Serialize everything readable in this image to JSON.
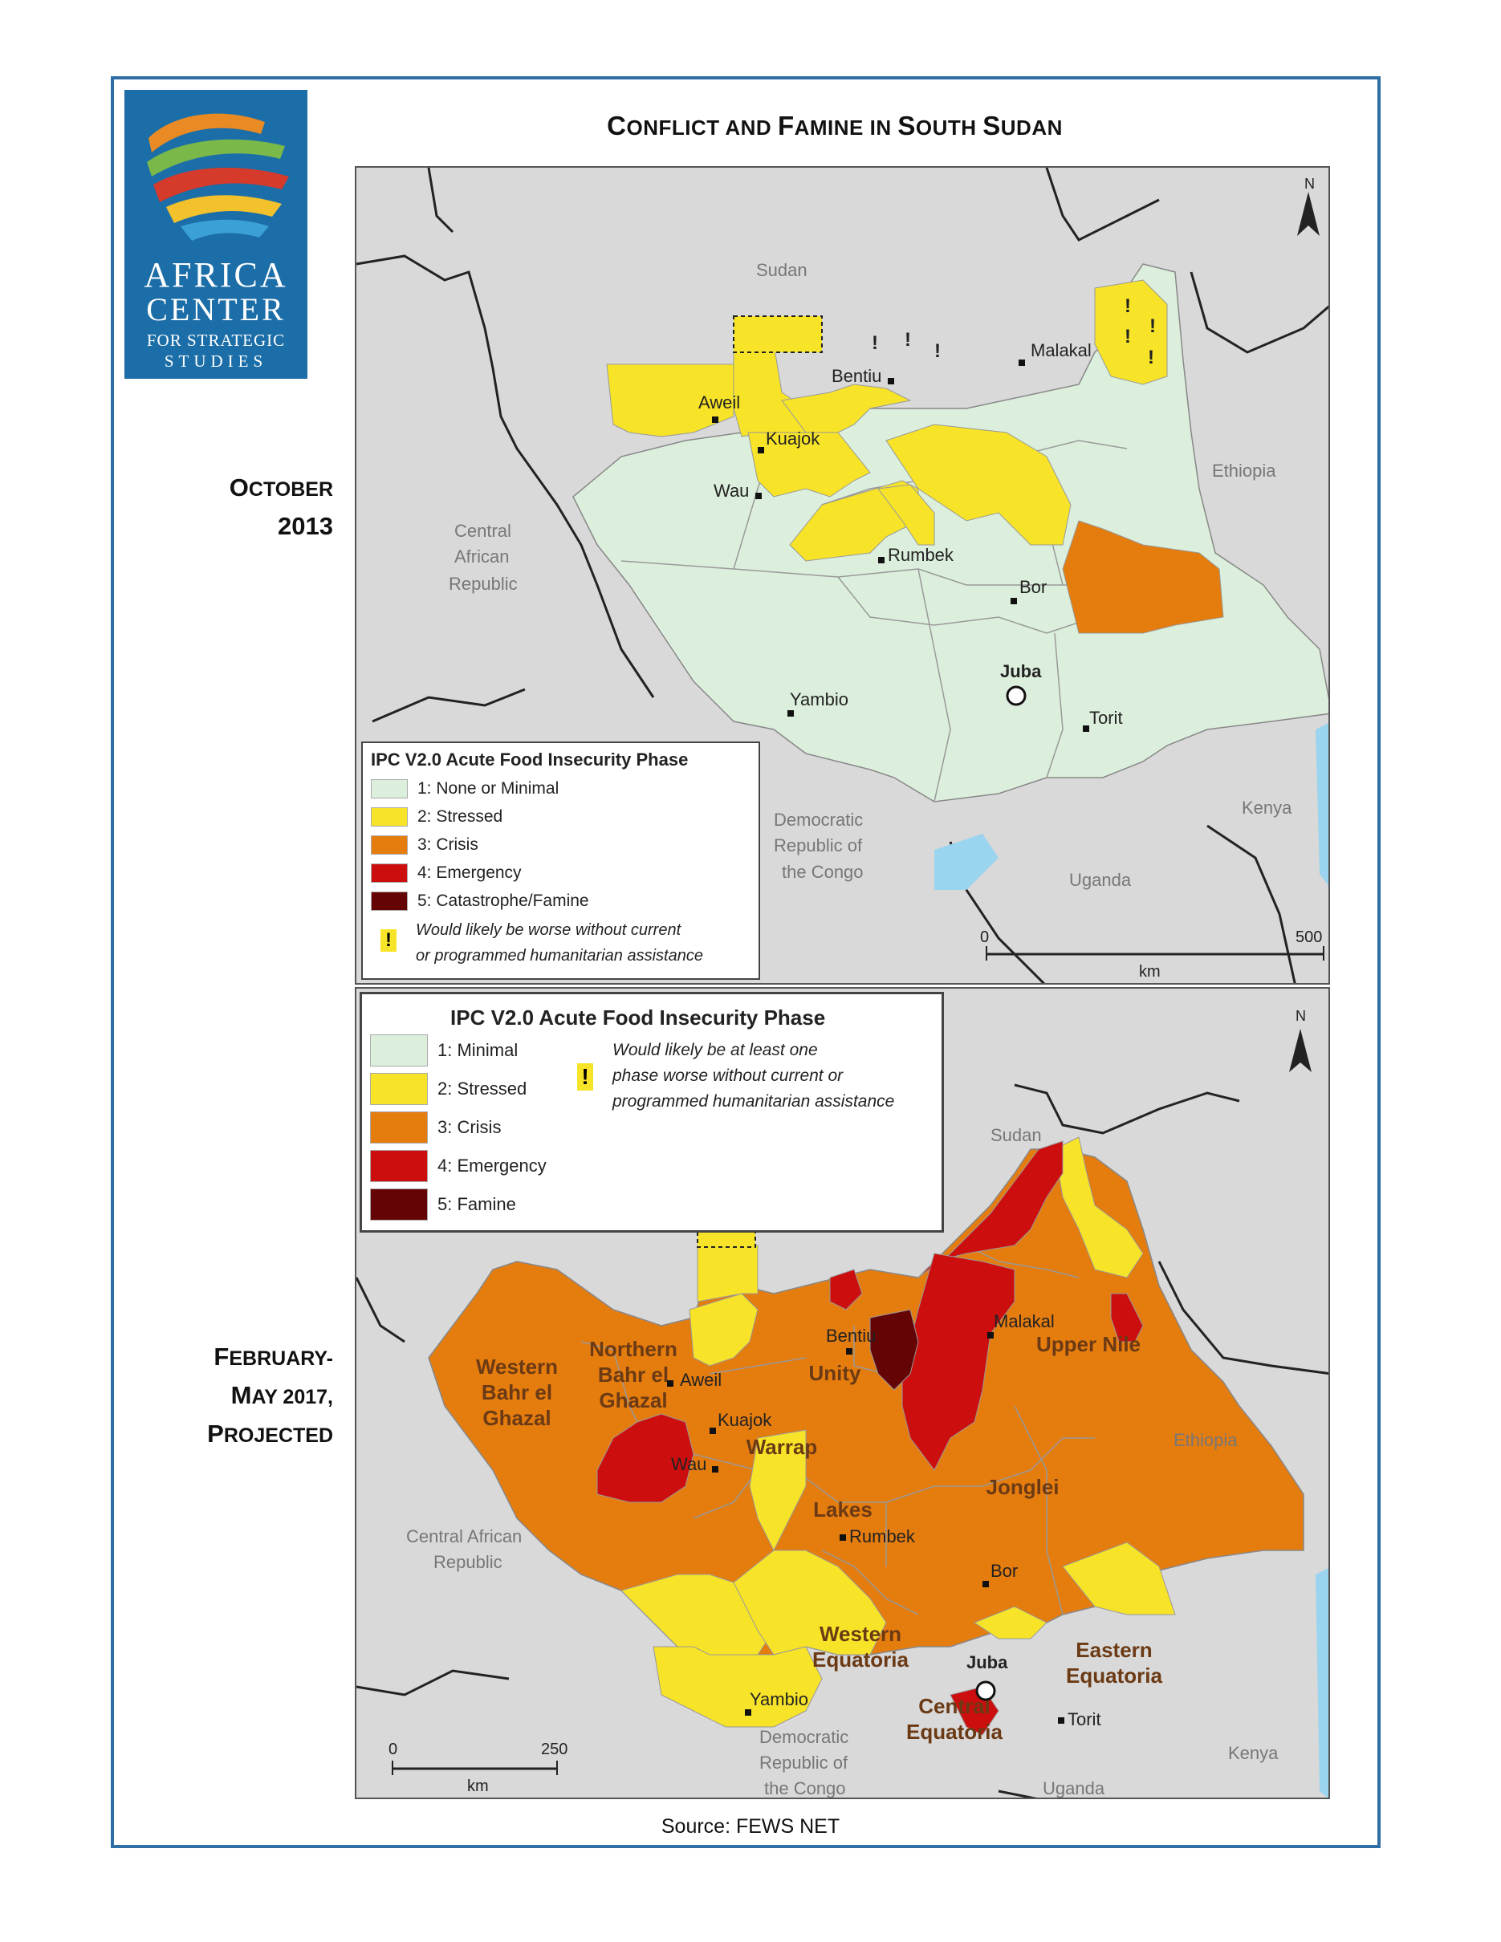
{
  "title_parts": [
    "C",
    "ONFLICT AND ",
    "F",
    "AMINE IN ",
    "S",
    "OUTH ",
    "S",
    "UDAN"
  ],
  "logo": {
    "line1": "AFRICA",
    "line2": "CENTER",
    "line3": "FOR STRATEGIC",
    "line4": "STUDIES"
  },
  "side_labels": {
    "top": {
      "line1_cap": "O",
      "line1_rest": "CTOBER",
      "line2": "2013"
    },
    "bottom": {
      "line1_cap": "F",
      "line1_rest": "EBRUARY-",
      "line2_cap": "M",
      "line2_rest": "AY 2017,",
      "line3_cap": "P",
      "line3_rest": "ROJECTED"
    }
  },
  "map1": {
    "countries": [
      "Sudan",
      "Ethiopia",
      "Central",
      "African",
      "Republic",
      "Democratic",
      "Republic of",
      "the Congo",
      "Uganda",
      "Kenya"
    ],
    "cities": [
      "Malakal",
      "Bentiu",
      "Aweil",
      "Kuajok",
      "Wau",
      "Rumbek",
      "Bor",
      "Juba",
      "Yambio",
      "Torit"
    ],
    "legend_title": "IPC V2.0 Acute Food Insecurity Phase",
    "legend_items": [
      {
        "label": "1: None or Minimal",
        "color": "#dcefdc"
      },
      {
        "label": "2: Stressed",
        "color": "#f7e428"
      },
      {
        "label": "3: Crisis",
        "color": "#e57c0e"
      },
      {
        "label": "4: Emergency",
        "color": "#cc0e0e"
      },
      {
        "label": "5: Catastrophe/Famine",
        "color": "#650404"
      }
    ],
    "assist_note_1": "Would likely be worse without current",
    "assist_note_2": "or programmed humanitarian assistance",
    "scale": {
      "start": "0",
      "end": "500",
      "unit": "km"
    },
    "north": "N"
  },
  "map2": {
    "countries": [
      "Sudan",
      "Ethiopia",
      "Central African",
      "Republic",
      "Democratic",
      "Republic of",
      "the Congo",
      "Uganda",
      "Kenya"
    ],
    "cities": [
      "Malakal",
      "Bentiu",
      "Aweil",
      "Kuajok",
      "Wau",
      "Rumbek",
      "Bor",
      "Juba",
      "Yambio",
      "Torit"
    ],
    "states": [
      [
        "Western",
        "Bahr el",
        "Ghazal"
      ],
      [
        "Northern",
        "Bahr el",
        "Ghazal"
      ],
      [
        "Unity"
      ],
      [
        "Upper Nile"
      ],
      [
        "Warrap"
      ],
      [
        "Lakes"
      ],
      [
        "Jonglei"
      ],
      [
        "Western",
        "Equatoria"
      ],
      [
        "Central",
        "Equatoria"
      ],
      [
        "Eastern",
        "Equatoria"
      ]
    ],
    "legend_title": "IPC V2.0 Acute Food Insecurity Phase",
    "legend_items": [
      {
        "label": "1: Minimal",
        "color": "#dcefdc"
      },
      {
        "label": "2: Stressed",
        "color": "#f7e428"
      },
      {
        "label": "3: Crisis",
        "color": "#e57c0e"
      },
      {
        "label": "4: Emergency",
        "color": "#cc0e0e"
      },
      {
        "label": "5: Famine",
        "color": "#650404"
      }
    ],
    "assist_note_1": "Would likely be at least one",
    "assist_note_2": "phase worse without current or",
    "assist_note_3": "programmed humanitarian assistance",
    "scale": {
      "start": "0",
      "end": "250",
      "unit": "km"
    },
    "north": "N"
  },
  "source": "Source: FEWS NET"
}
